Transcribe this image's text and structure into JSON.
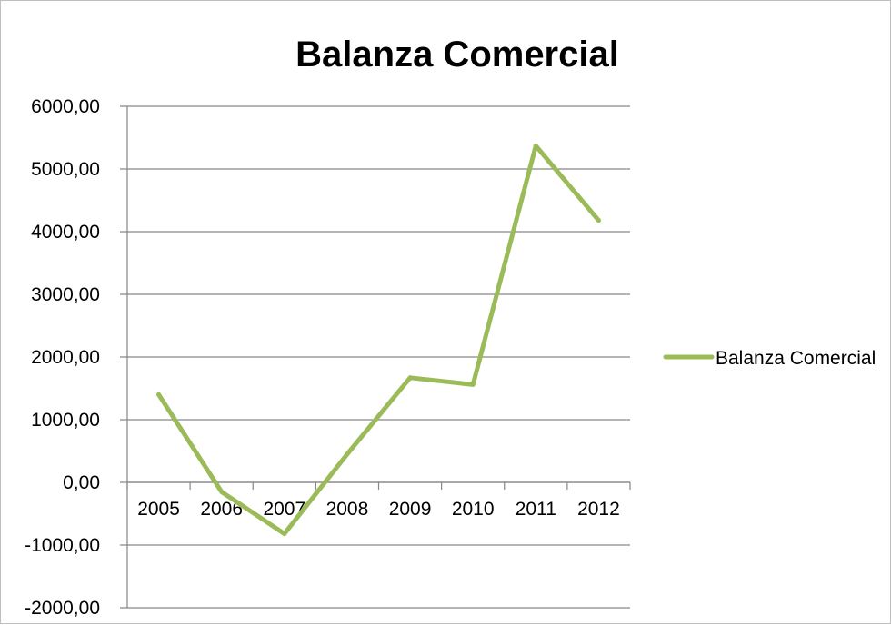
{
  "chart_data": {
    "type": "line",
    "title": "Balanza Comercial",
    "xlabel": "",
    "ylabel": "",
    "categories": [
      "2005",
      "2006",
      "2007",
      "2008",
      "2009",
      "2010",
      "2011",
      "2012"
    ],
    "series": [
      {
        "name": "Balanza Comercial",
        "values": [
          1400,
          -150,
          -820,
          450,
          1670,
          1560,
          5370,
          4180
        ],
        "color": "#9bbb59"
      }
    ],
    "ylim": [
      -2000,
      6000
    ],
    "yticks": [
      6000,
      5000,
      4000,
      3000,
      2000,
      1000,
      0,
      -1000,
      -2000
    ],
    "ytick_labels": [
      "6000,00",
      "5000,00",
      "4000,00",
      "3000,00",
      "2000,00",
      "1000,00",
      "0,00",
      "-1000,00",
      "-2000,00"
    ],
    "grid": true,
    "legend_position": "right"
  }
}
